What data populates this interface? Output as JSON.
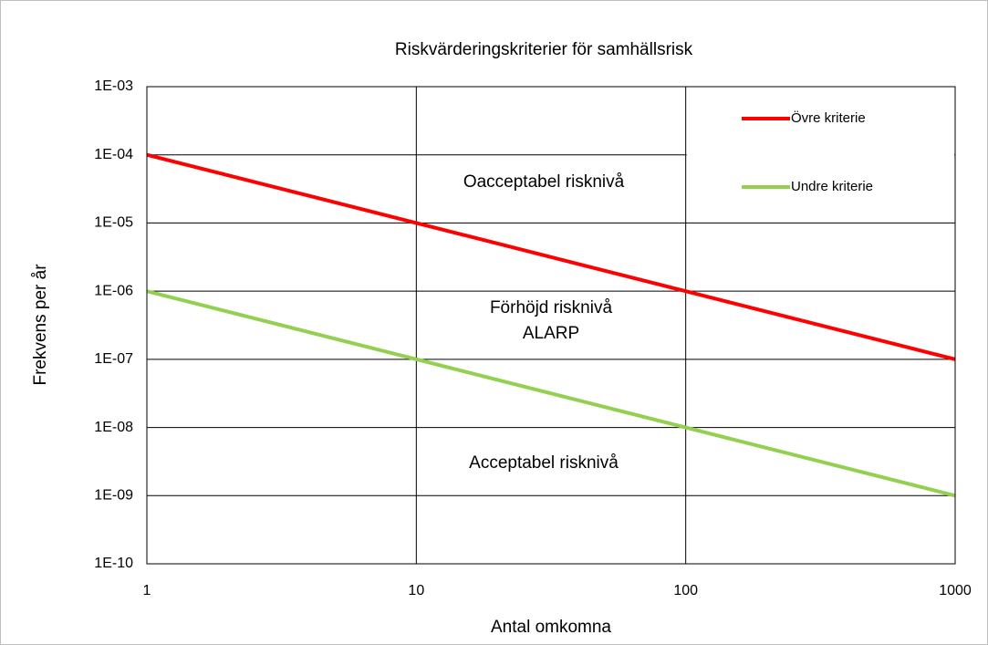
{
  "chart_data": {
    "type": "line",
    "title": "Riskvärderingskriterier för samhällsrisk",
    "xlabel": "Antal omkomna",
    "ylabel": "Frekvens per år",
    "x": [
      1,
      10,
      100,
      1000
    ],
    "series": [
      {
        "name": "Övre kriterie",
        "color": "#ff0000",
        "values": [
          0.0001,
          1e-05,
          1e-06,
          1e-07
        ]
      },
      {
        "name": "Undre kriterie",
        "color": "#92d050",
        "values": [
          1e-06,
          1e-07,
          1e-08,
          1e-09
        ]
      }
    ],
    "xlim": [
      1,
      1000
    ],
    "xticks": [
      1,
      10,
      100,
      1000
    ],
    "ylim": [
      1e-10,
      0.001
    ],
    "yticks": [
      {
        "value": 1e-10,
        "label": "1E-10"
      },
      {
        "value": 1e-09,
        "label": "1E-09"
      },
      {
        "value": 1e-08,
        "label": "1E-08"
      },
      {
        "value": 1e-07,
        "label": "1E-07"
      },
      {
        "value": 1e-06,
        "label": "1E-06"
      },
      {
        "value": 1e-05,
        "label": "1E-05"
      },
      {
        "value": 0.0001,
        "label": "1E-04"
      },
      {
        "value": 0.001,
        "label": "1E-03"
      }
    ],
    "xlog": true,
    "ylog": true,
    "grid": true,
    "legend": "upper right",
    "annotations": [
      "Oacceptabel risknivå",
      "Förhöjd risknivå",
      "ALARP",
      "Acceptabel risknivå"
    ]
  }
}
